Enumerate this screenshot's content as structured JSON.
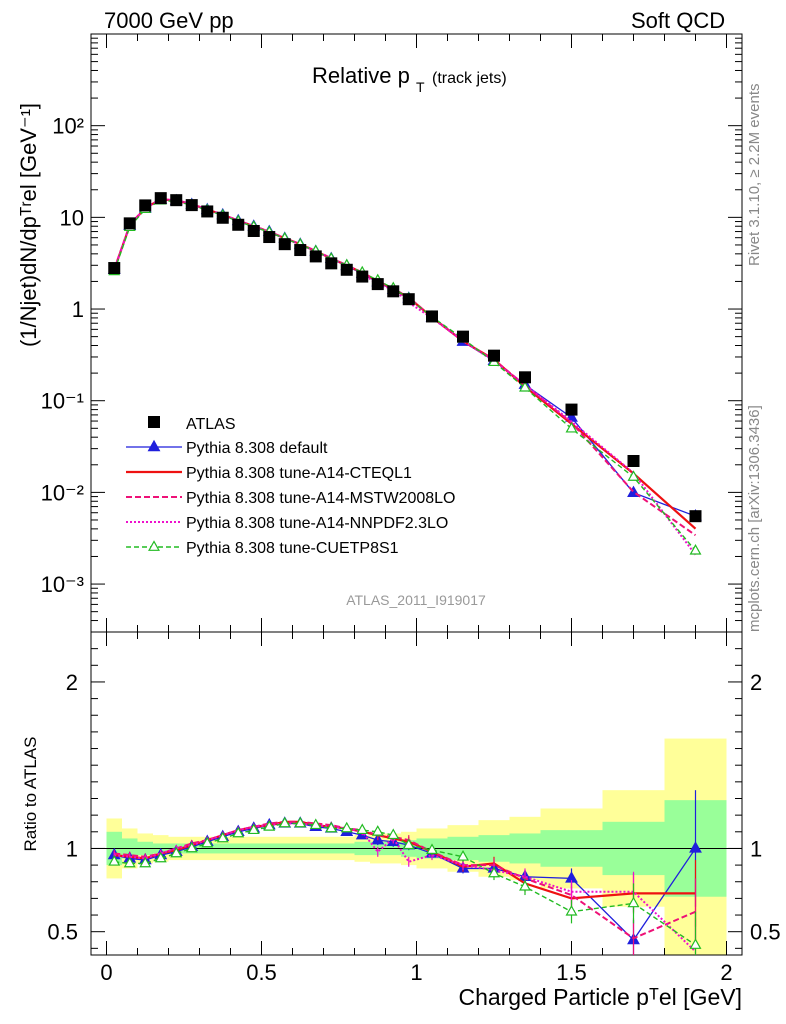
{
  "header": {
    "left": "7000 GeV pp",
    "right": "Soft QCD"
  },
  "side_labels": {
    "top": "Rivet 3.1.10, ≥ 2.2M events",
    "bottom": "mcplots.cern.ch [arXiv:1306.3436]"
  },
  "chart_data": {
    "type": "line",
    "title_main": "Relative p",
    "title_sub": "T",
    "title_tail": "(track jets)",
    "watermark": "ATLAS_2011_I919017",
    "xlabel": "Charged Particle pᵀel [GeV]",
    "ylabel": "(1/Njet)dN/dpᵀʳel [GeV⁻¹]",
    "ratio_ylabel": "Ratio to ATLAS",
    "xlim": [
      -0.05,
      2.05
    ],
    "ylim_log": [
      0.0003,
      1000
    ],
    "ratio_ylim": [
      0.36,
      2.3
    ],
    "x_ticks": [
      "0",
      "0.5",
      "1",
      "1.5",
      "2"
    ],
    "y_ticks": [
      "10⁻³",
      "10⁻²",
      "10⁻¹",
      "1",
      "10",
      "10²"
    ],
    "ratio_ticks": [
      "0.5",
      "1",
      "2"
    ],
    "legend_position": "middle-left",
    "x": [
      0.025,
      0.075,
      0.125,
      0.175,
      0.225,
      0.275,
      0.325,
      0.375,
      0.425,
      0.475,
      0.525,
      0.575,
      0.625,
      0.675,
      0.725,
      0.775,
      0.825,
      0.875,
      0.925,
      0.975,
      1.05,
      1.15,
      1.25,
      1.35,
      1.5,
      1.7,
      1.9
    ],
    "x_edges": [
      0.0,
      0.05,
      0.1,
      0.15,
      0.2,
      0.25,
      0.3,
      0.35,
      0.4,
      0.45,
      0.5,
      0.55,
      0.6,
      0.65,
      0.7,
      0.75,
      0.8,
      0.85,
      0.9,
      0.95,
      1.0,
      1.1,
      1.2,
      1.3,
      1.4,
      1.6,
      1.8,
      2.0
    ],
    "band_inner": [
      0.1,
      0.06,
      0.04,
      0.03,
      0.03,
      0.03,
      0.03,
      0.03,
      0.03,
      0.03,
      0.03,
      0.03,
      0.03,
      0.03,
      0.03,
      0.03,
      0.04,
      0.04,
      0.04,
      0.05,
      0.06,
      0.07,
      0.08,
      0.09,
      0.11,
      0.16,
      0.29
    ],
    "band_outer": [
      0.18,
      0.12,
      0.09,
      0.08,
      0.07,
      0.07,
      0.07,
      0.07,
      0.07,
      0.07,
      0.07,
      0.07,
      0.07,
      0.07,
      0.07,
      0.07,
      0.08,
      0.09,
      0.09,
      0.1,
      0.12,
      0.14,
      0.17,
      0.19,
      0.24,
      0.35,
      0.66
    ],
    "data": {
      "name": "ATLAS",
      "color": "#000000",
      "values": [
        2.8,
        8.6,
        13.5,
        16.2,
        15.4,
        13.6,
        11.6,
        9.9,
        8.3,
        7.1,
        6.1,
        5.1,
        4.4,
        3.75,
        3.15,
        2.68,
        2.26,
        1.87,
        1.56,
        1.28,
        0.83,
        0.5,
        0.31,
        0.18,
        0.08,
        0.022,
        0.0055
      ]
    },
    "series": [
      {
        "name": "Pythia 8.308 default",
        "color": "#1f1fdc",
        "dash": "",
        "width": 1.3,
        "marker": "triangle-filled",
        "ratio": [
          0.96,
          0.94,
          0.93,
          0.96,
          0.98,
          1.01,
          1.04,
          1.07,
          1.1,
          1.12,
          1.14,
          1.15,
          1.15,
          1.13,
          1.12,
          1.1,
          1.08,
          1.05,
          1.04,
          1.02,
          0.97,
          0.88,
          0.88,
          0.83,
          0.82,
          0.45,
          1.0
        ],
        "ratio_err": [
          0.02,
          0.02,
          0.02,
          0.02,
          0.02,
          0.02,
          0.02,
          0.02,
          0.02,
          0.02,
          0.02,
          0.02,
          0.02,
          0.02,
          0.02,
          0.02,
          0.02,
          0.03,
          0.03,
          0.03,
          0.03,
          0.03,
          0.04,
          0.04,
          0.06,
          0.12,
          0.35
        ]
      },
      {
        "name": "Pythia 8.308 tune-A14-CTEQL1",
        "color": "#ee1111",
        "dash": "",
        "width": 2.2,
        "marker": "none",
        "ratio": [
          0.96,
          0.95,
          0.94,
          0.97,
          0.99,
          1.02,
          1.05,
          1.08,
          1.11,
          1.13,
          1.14,
          1.16,
          1.16,
          1.14,
          1.13,
          1.12,
          1.1,
          1.08,
          1.06,
          1.04,
          0.98,
          0.89,
          0.91,
          0.79,
          0.7,
          0.73,
          0.73
        ],
        "ratio_err": [
          0.02,
          0.02,
          0.02,
          0.02,
          0.02,
          0.02,
          0.02,
          0.02,
          0.02,
          0.02,
          0.02,
          0.02,
          0.02,
          0.02,
          0.02,
          0.02,
          0.02,
          0.03,
          0.03,
          0.03,
          0.03,
          0.03,
          0.04,
          0.05,
          0.07,
          0.12,
          0.2
        ]
      },
      {
        "name": "Pythia 8.308 tune-A14-MSTW2008LO",
        "color": "#ee1177",
        "dash": "6,3",
        "width": 2.0,
        "marker": "none",
        "ratio": [
          0.97,
          0.96,
          0.95,
          0.97,
          1.0,
          1.03,
          1.05,
          1.08,
          1.11,
          1.13,
          1.15,
          1.16,
          1.16,
          1.15,
          1.14,
          1.12,
          1.11,
          1.08,
          1.07,
          1.05,
          0.98,
          0.9,
          0.9,
          0.82,
          0.72,
          0.46,
          0.62
        ],
        "ratio_err": [
          0.02,
          0.02,
          0.02,
          0.02,
          0.02,
          0.02,
          0.02,
          0.02,
          0.02,
          0.02,
          0.02,
          0.02,
          0.02,
          0.02,
          0.02,
          0.02,
          0.02,
          0.03,
          0.03,
          0.03,
          0.03,
          0.03,
          0.04,
          0.05,
          0.07,
          0.12,
          0.2
        ]
      },
      {
        "name": "Pythia 8.308 tune-A14-NNPDF2.3LO",
        "color": "#ee11cc",
        "dash": "2,2",
        "width": 2.0,
        "marker": "none",
        "ratio": [
          0.96,
          0.95,
          0.94,
          0.97,
          1.0,
          1.02,
          1.05,
          1.08,
          1.11,
          1.13,
          1.14,
          1.15,
          1.15,
          1.14,
          1.13,
          1.12,
          1.1,
          0.98,
          1.06,
          0.92,
          0.96,
          0.9,
          0.87,
          0.83,
          0.74,
          0.74,
          0.38
        ],
        "ratio_err": [
          0.02,
          0.02,
          0.02,
          0.02,
          0.02,
          0.02,
          0.02,
          0.02,
          0.02,
          0.02,
          0.02,
          0.02,
          0.02,
          0.02,
          0.02,
          0.02,
          0.02,
          0.03,
          0.03,
          0.03,
          0.03,
          0.03,
          0.04,
          0.05,
          0.07,
          0.12,
          0.2
        ]
      },
      {
        "name": "Pythia 8.308 tune-CUETP8S1",
        "color": "#22bb22",
        "dash": "5,3",
        "width": 1.4,
        "marker": "triangle-open",
        "ratio": [
          0.92,
          0.91,
          0.91,
          0.94,
          0.97,
          1.0,
          1.03,
          1.06,
          1.09,
          1.11,
          1.13,
          1.15,
          1.15,
          1.14,
          1.12,
          1.12,
          1.11,
          1.1,
          1.08,
          1.02,
          0.99,
          0.95,
          0.85,
          0.77,
          0.62,
          0.67,
          0.42
        ],
        "ratio_err": [
          0.02,
          0.02,
          0.02,
          0.02,
          0.02,
          0.02,
          0.02,
          0.02,
          0.02,
          0.02,
          0.02,
          0.02,
          0.02,
          0.02,
          0.02,
          0.02,
          0.02,
          0.03,
          0.03,
          0.03,
          0.03,
          0.03,
          0.04,
          0.05,
          0.07,
          0.12,
          0.2
        ]
      }
    ]
  }
}
